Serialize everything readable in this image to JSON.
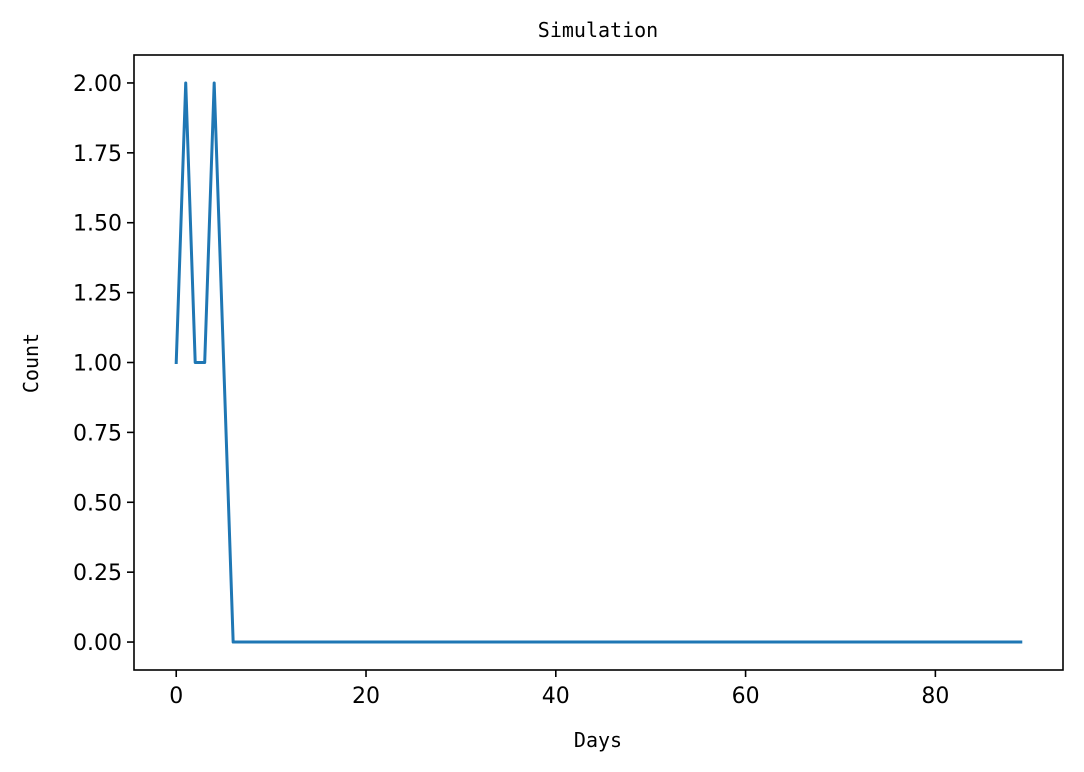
{
  "chart_data": {
    "type": "line",
    "title": "Simulation",
    "xlabel": "Days",
    "ylabel": "Count",
    "xlim": [
      -4.45,
      93.45
    ],
    "ylim": [
      -0.1,
      2.1
    ],
    "xticks": [
      0,
      20,
      40,
      60,
      80
    ],
    "xtick_labels": [
      "0",
      "20",
      "40",
      "60",
      "80"
    ],
    "yticks": [
      0.0,
      0.25,
      0.5,
      0.75,
      1.0,
      1.25,
      1.5,
      1.75,
      2.0
    ],
    "ytick_labels": [
      "0.00",
      "0.25",
      "0.50",
      "0.75",
      "1.00",
      "1.25",
      "1.50",
      "1.75",
      "2.00"
    ],
    "grid": false,
    "series": [
      {
        "color": "#1f77b4",
        "x": [
          0,
          1,
          2,
          3,
          4,
          5,
          6,
          7,
          8,
          9,
          10,
          11,
          12,
          13,
          14,
          15,
          16,
          17,
          18,
          19,
          20,
          21,
          22,
          23,
          24,
          25,
          26,
          27,
          28,
          29,
          30,
          31,
          32,
          33,
          34,
          35,
          36,
          37,
          38,
          39,
          40,
          41,
          42,
          43,
          44,
          45,
          46,
          47,
          48,
          49,
          50,
          51,
          52,
          53,
          54,
          55,
          56,
          57,
          58,
          59,
          60,
          61,
          62,
          63,
          64,
          65,
          66,
          67,
          68,
          69,
          70,
          71,
          72,
          73,
          74,
          75,
          76,
          77,
          78,
          79,
          80,
          81,
          82,
          83,
          84,
          85,
          86,
          87,
          88,
          89
        ],
        "y": [
          1,
          2,
          1,
          1,
          2,
          1,
          0,
          0,
          0,
          0,
          0,
          0,
          0,
          0,
          0,
          0,
          0,
          0,
          0,
          0,
          0,
          0,
          0,
          0,
          0,
          0,
          0,
          0,
          0,
          0,
          0,
          0,
          0,
          0,
          0,
          0,
          0,
          0,
          0,
          0,
          0,
          0,
          0,
          0,
          0,
          0,
          0,
          0,
          0,
          0,
          0,
          0,
          0,
          0,
          0,
          0,
          0,
          0,
          0,
          0,
          0,
          0,
          0,
          0,
          0,
          0,
          0,
          0,
          0,
          0,
          0,
          0,
          0,
          0,
          0,
          0,
          0,
          0,
          0,
          0,
          0,
          0,
          0,
          0,
          0,
          0,
          0,
          0,
          0,
          0
        ]
      }
    ]
  }
}
